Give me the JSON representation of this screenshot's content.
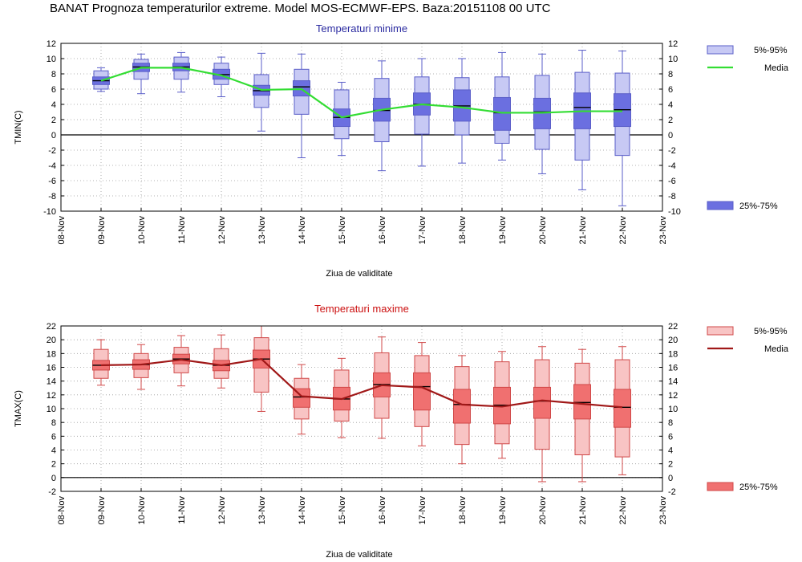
{
  "title": "BANAT  Prognoza temperaturilor extreme.  Model MOS-ECMWF-EPS. Baza:20151108 00 UTC",
  "colors": {
    "tmin_light": "#c7c9f4",
    "tmin_dark": "#6b6fe0",
    "tmin_edge": "#5a5ec8",
    "tmin_line": "#33dd33",
    "tmin_title": "#2a2aa0",
    "tmax_light": "#f8c4c4",
    "tmax_dark": "#f07070",
    "tmax_edge": "#d04848",
    "tmax_line": "#a01818",
    "tmax_title": "#cc1111"
  },
  "chart_data": [
    {
      "type": "box",
      "title": "Temperaturi minime",
      "xlabel": "Ziua de validitate",
      "ylabel": "TMIN(C)",
      "ylim": [
        -10,
        12
      ],
      "yticks": [
        -10,
        -8,
        -6,
        -4,
        -2,
        0,
        2,
        4,
        6,
        8,
        10,
        12
      ],
      "xtick_labels": [
        "08-Nov",
        "09-Nov",
        "10-Nov",
        "11-Nov",
        "12-Nov",
        "13-Nov",
        "14-Nov",
        "15-Nov",
        "16-Nov",
        "17-Nov",
        "18-Nov",
        "19-Nov",
        "20-Nov",
        "21-Nov",
        "22-Nov",
        "23-Nov"
      ],
      "legend": {
        "light": "5%-95%",
        "dark": "25%-75%",
        "line": "Media"
      },
      "series": [
        {
          "day": "09-Nov",
          "min": 5.7,
          "p5": 6.0,
          "p25": 6.6,
          "median": 7.1,
          "p75": 7.6,
          "p95": 8.4,
          "max": 8.8,
          "mean": 7.1
        },
        {
          "day": "10-Nov",
          "min": 5.4,
          "p5": 7.3,
          "p25": 8.3,
          "median": 8.9,
          "p75": 9.4,
          "p95": 9.9,
          "max": 10.6,
          "mean": 8.8
        },
        {
          "day": "11-Nov",
          "min": 5.6,
          "p5": 7.3,
          "p25": 8.4,
          "median": 8.9,
          "p75": 9.4,
          "p95": 10.2,
          "max": 10.8,
          "mean": 8.8
        },
        {
          "day": "12-Nov",
          "min": 5.0,
          "p5": 6.6,
          "p25": 7.3,
          "median": 7.9,
          "p75": 8.6,
          "p95": 9.4,
          "max": 10.2,
          "mean": 7.8
        },
        {
          "day": "13-Nov",
          "min": 0.5,
          "p5": 3.6,
          "p25": 5.2,
          "median": 5.8,
          "p75": 6.5,
          "p95": 7.9,
          "max": 10.7,
          "mean": 5.9
        },
        {
          "day": "14-Nov",
          "min": -3.0,
          "p5": 2.7,
          "p25": 5.1,
          "median": 6.3,
          "p75": 7.1,
          "p95": 8.6,
          "max": 10.6,
          "mean": 6.0
        },
        {
          "day": "15-Nov",
          "min": -2.7,
          "p5": -0.5,
          "p25": 1.1,
          "median": 2.3,
          "p75": 3.4,
          "p95": 5.9,
          "max": 6.9,
          "mean": 2.3
        },
        {
          "day": "16-Nov",
          "min": -4.7,
          "p5": -0.9,
          "p25": 1.8,
          "median": 3.2,
          "p75": 4.8,
          "p95": 7.4,
          "max": 9.7,
          "mean": 3.3
        },
        {
          "day": "17-Nov",
          "min": -4.1,
          "p5": 0.1,
          "p25": 2.6,
          "median": 4.0,
          "p75": 5.5,
          "p95": 7.6,
          "max": 10.0,
          "mean": 4.0
        },
        {
          "day": "18-Nov",
          "min": -3.7,
          "p5": 0.0,
          "p25": 1.8,
          "median": 3.8,
          "p75": 5.9,
          "p95": 7.5,
          "max": 10.0,
          "mean": 3.6
        },
        {
          "day": "19-Nov",
          "min": -3.3,
          "p5": -1.1,
          "p25": 0.6,
          "median": 2.9,
          "p75": 4.9,
          "p95": 7.6,
          "max": 10.8,
          "mean": 2.9
        },
        {
          "day": "20-Nov",
          "min": -5.1,
          "p5": -1.9,
          "p25": 0.8,
          "median": 3.0,
          "p75": 4.8,
          "p95": 7.8,
          "max": 10.6,
          "mean": 2.9
        },
        {
          "day": "21-Nov",
          "min": -7.2,
          "p5": -3.3,
          "p25": 0.8,
          "median": 3.6,
          "p75": 5.5,
          "p95": 8.2,
          "max": 11.1,
          "mean": 3.1
        },
        {
          "day": "22-Nov",
          "min": -9.3,
          "p5": -2.7,
          "p25": 1.1,
          "median": 3.3,
          "p75": 5.4,
          "p95": 8.1,
          "max": 11.0,
          "mean": 3.1
        }
      ]
    },
    {
      "type": "box",
      "title": "Temperaturi maxime",
      "xlabel": "Ziua de validitate",
      "ylabel": "TMAX(C)",
      "ylim": [
        -2,
        22
      ],
      "yticks": [
        -2,
        0,
        2,
        4,
        6,
        8,
        10,
        12,
        14,
        16,
        18,
        20,
        22
      ],
      "xtick_labels": [
        "08-Nov",
        "09-Nov",
        "10-Nov",
        "11-Nov",
        "12-Nov",
        "13-Nov",
        "14-Nov",
        "15-Nov",
        "16-Nov",
        "17-Nov",
        "18-Nov",
        "19-Nov",
        "20-Nov",
        "21-Nov",
        "22-Nov",
        "23-Nov"
      ],
      "legend": {
        "light": "5%-95%",
        "dark": "25%-75%",
        "line": "Media"
      },
      "series": [
        {
          "day": "09-Nov",
          "min": 13.4,
          "p5": 14.4,
          "p25": 15.6,
          "median": 16.3,
          "p75": 17.0,
          "p95": 18.6,
          "max": 20.0,
          "mean": 16.3
        },
        {
          "day": "10-Nov",
          "min": 12.8,
          "p5": 14.5,
          "p25": 15.7,
          "median": 16.4,
          "p75": 17.1,
          "p95": 18.0,
          "max": 19.3,
          "mean": 16.4
        },
        {
          "day": "11-Nov",
          "min": 13.3,
          "p5": 15.2,
          "p25": 16.5,
          "median": 17.2,
          "p75": 17.9,
          "p95": 18.9,
          "max": 20.6,
          "mean": 17.1
        },
        {
          "day": "12-Nov",
          "min": 13.0,
          "p5": 14.4,
          "p25": 15.5,
          "median": 16.3,
          "p75": 17.0,
          "p95": 18.7,
          "max": 20.7,
          "mean": 16.3
        },
        {
          "day": "13-Nov",
          "min": 9.6,
          "p5": 12.4,
          "p25": 15.9,
          "median": 17.2,
          "p75": 18.5,
          "p95": 20.3,
          "max": 22.0,
          "mean": 17.2
        },
        {
          "day": "14-Nov",
          "min": 6.3,
          "p5": 8.5,
          "p25": 10.2,
          "median": 11.7,
          "p75": 12.9,
          "p95": 14.4,
          "max": 16.4,
          "mean": 11.8
        },
        {
          "day": "15-Nov",
          "min": 5.8,
          "p5": 8.2,
          "p25": 9.8,
          "median": 11.4,
          "p75": 13.1,
          "p95": 15.6,
          "max": 17.3,
          "mean": 11.4
        },
        {
          "day": "16-Nov",
          "min": 5.7,
          "p5": 8.6,
          "p25": 11.7,
          "median": 13.5,
          "p75": 15.2,
          "p95": 18.1,
          "max": 20.4,
          "mean": 13.4
        },
        {
          "day": "17-Nov",
          "min": 4.6,
          "p5": 7.4,
          "p25": 9.8,
          "median": 13.2,
          "p75": 15.2,
          "p95": 17.7,
          "max": 19.6,
          "mean": 13.1
        },
        {
          "day": "18-Nov",
          "min": 2.0,
          "p5": 4.8,
          "p25": 7.9,
          "median": 10.6,
          "p75": 12.8,
          "p95": 16.1,
          "max": 17.7,
          "mean": 10.6
        },
        {
          "day": "19-Nov",
          "min": 2.8,
          "p5": 4.9,
          "p25": 7.8,
          "median": 10.5,
          "p75": 13.1,
          "p95": 16.8,
          "max": 18.3,
          "mean": 10.3
        },
        {
          "day": "20-Nov",
          "min": -0.6,
          "p5": 4.1,
          "p25": 8.6,
          "median": 11.1,
          "p75": 13.1,
          "p95": 17.1,
          "max": 19.0,
          "mean": 11.2
        },
        {
          "day": "21-Nov",
          "min": -0.6,
          "p5": 3.3,
          "p25": 8.5,
          "median": 10.9,
          "p75": 13.5,
          "p95": 16.6,
          "max": 18.6,
          "mean": 10.7
        },
        {
          "day": "22-Nov",
          "min": 0.4,
          "p5": 3.0,
          "p25": 7.3,
          "median": 10.2,
          "p75": 12.8,
          "p95": 17.1,
          "max": 19.0,
          "mean": 10.2
        }
      ]
    }
  ]
}
